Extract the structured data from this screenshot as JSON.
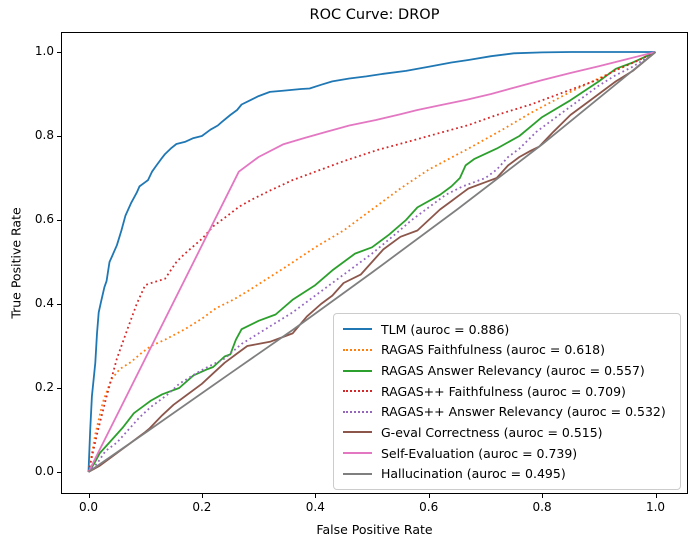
{
  "figure": {
    "title": "ROC Curve: DROP",
    "xlabel": "False Positive Rate",
    "ylabel": "True Positive Rate"
  },
  "chart_data": {
    "type": "line",
    "title": "ROC Curve: DROP",
    "xlabel": "False Positive Rate",
    "ylabel": "True Positive Rate",
    "xlim": [
      0.0,
      1.0
    ],
    "ylim": [
      0.0,
      1.0
    ],
    "axis_margin": 0.05,
    "grid": false,
    "legend_position": "lower right",
    "xtick_labels": [
      "0.0",
      "0.2",
      "0.4",
      "0.6",
      "0.8",
      "1.0"
    ],
    "ytick_labels": [
      "0.0",
      "0.2",
      "0.4",
      "0.6",
      "0.8",
      "1.0"
    ],
    "xticks": [
      0.0,
      0.2,
      0.4,
      0.6,
      0.8,
      1.0
    ],
    "yticks": [
      0.0,
      0.2,
      0.4,
      0.6,
      0.8,
      1.0
    ],
    "series": [
      {
        "name": "TLM",
        "auroc": 0.886,
        "label": "TLM (auroc = 0.886)",
        "color": "#1f77b4",
        "style": "solid",
        "points": [
          [
            0,
            0
          ],
          [
            0.003,
            0.1
          ],
          [
            0.006,
            0.18
          ],
          [
            0.009,
            0.22
          ],
          [
            0.012,
            0.26
          ],
          [
            0.015,
            0.33
          ],
          [
            0.018,
            0.38
          ],
          [
            0.022,
            0.405
          ],
          [
            0.028,
            0.44
          ],
          [
            0.032,
            0.455
          ],
          [
            0.037,
            0.5
          ],
          [
            0.042,
            0.515
          ],
          [
            0.05,
            0.54
          ],
          [
            0.058,
            0.575
          ],
          [
            0.065,
            0.61
          ],
          [
            0.075,
            0.64
          ],
          [
            0.085,
            0.665
          ],
          [
            0.09,
            0.68
          ],
          [
            0.1,
            0.69
          ],
          [
            0.105,
            0.695
          ],
          [
            0.112,
            0.715
          ],
          [
            0.12,
            0.73
          ],
          [
            0.128,
            0.745
          ],
          [
            0.135,
            0.757
          ],
          [
            0.145,
            0.77
          ],
          [
            0.155,
            0.781
          ],
          [
            0.17,
            0.786
          ],
          [
            0.185,
            0.795
          ],
          [
            0.2,
            0.8
          ],
          [
            0.215,
            0.815
          ],
          [
            0.228,
            0.825
          ],
          [
            0.235,
            0.833
          ],
          [
            0.25,
            0.85
          ],
          [
            0.262,
            0.862
          ],
          [
            0.27,
            0.875
          ],
          [
            0.285,
            0.885
          ],
          [
            0.3,
            0.895
          ],
          [
            0.32,
            0.905
          ],
          [
            0.345,
            0.908
          ],
          [
            0.375,
            0.912
          ],
          [
            0.39,
            0.913
          ],
          [
            0.41,
            0.922
          ],
          [
            0.43,
            0.93
          ],
          [
            0.46,
            0.937
          ],
          [
            0.49,
            0.942
          ],
          [
            0.52,
            0.948
          ],
          [
            0.56,
            0.955
          ],
          [
            0.6,
            0.965
          ],
          [
            0.64,
            0.975
          ],
          [
            0.67,
            0.981
          ],
          [
            0.71,
            0.99
          ],
          [
            0.75,
            0.997
          ],
          [
            0.8,
            0.999
          ],
          [
            0.85,
            1.0
          ],
          [
            1,
            1
          ]
        ]
      },
      {
        "name": "RAGAS Faithfulness",
        "auroc": 0.618,
        "label": "RAGAS Faithfulness (auroc = 0.618)",
        "color": "#ff7f0e",
        "style": "dotted",
        "points": [
          [
            0,
            0
          ],
          [
            0.012,
            0.09
          ],
          [
            0.025,
            0.165
          ],
          [
            0.04,
            0.22
          ],
          [
            0.055,
            0.245
          ],
          [
            0.075,
            0.262
          ],
          [
            0.095,
            0.285
          ],
          [
            0.11,
            0.3
          ],
          [
            0.135,
            0.315
          ],
          [
            0.17,
            0.34
          ],
          [
            0.2,
            0.365
          ],
          [
            0.225,
            0.39
          ],
          [
            0.255,
            0.41
          ],
          [
            0.28,
            0.43
          ],
          [
            0.315,
            0.46
          ],
          [
            0.35,
            0.49
          ],
          [
            0.4,
            0.535
          ],
          [
            0.45,
            0.575
          ],
          [
            0.5,
            0.625
          ],
          [
            0.55,
            0.675
          ],
          [
            0.6,
            0.72
          ],
          [
            0.67,
            0.77
          ],
          [
            0.73,
            0.815
          ],
          [
            0.78,
            0.855
          ],
          [
            0.85,
            0.905
          ],
          [
            0.92,
            0.95
          ],
          [
            1,
            1
          ]
        ]
      },
      {
        "name": "RAGAS Answer Relevancy",
        "auroc": 0.557,
        "label": "RAGAS Answer Relevancy (auroc = 0.557)",
        "color": "#2ca02c",
        "style": "solid",
        "points": [
          [
            0,
            0
          ],
          [
            0.01,
            0.02
          ],
          [
            0.02,
            0.045
          ],
          [
            0.04,
            0.075
          ],
          [
            0.06,
            0.105
          ],
          [
            0.08,
            0.14
          ],
          [
            0.1,
            0.16
          ],
          [
            0.11,
            0.17
          ],
          [
            0.13,
            0.185
          ],
          [
            0.16,
            0.2
          ],
          [
            0.185,
            0.23
          ],
          [
            0.21,
            0.245
          ],
          [
            0.22,
            0.25
          ],
          [
            0.24,
            0.275
          ],
          [
            0.25,
            0.28
          ],
          [
            0.26,
            0.315
          ],
          [
            0.27,
            0.34
          ],
          [
            0.3,
            0.36
          ],
          [
            0.33,
            0.375
          ],
          [
            0.36,
            0.41
          ],
          [
            0.4,
            0.445
          ],
          [
            0.43,
            0.48
          ],
          [
            0.47,
            0.52
          ],
          [
            0.5,
            0.535
          ],
          [
            0.53,
            0.565
          ],
          [
            0.56,
            0.6
          ],
          [
            0.58,
            0.63
          ],
          [
            0.62,
            0.66
          ],
          [
            0.64,
            0.68
          ],
          [
            0.655,
            0.7
          ],
          [
            0.665,
            0.73
          ],
          [
            0.68,
            0.745
          ],
          [
            0.72,
            0.77
          ],
          [
            0.76,
            0.8
          ],
          [
            0.8,
            0.845
          ],
          [
            0.85,
            0.885
          ],
          [
            0.9,
            0.93
          ],
          [
            0.93,
            0.96
          ],
          [
            0.96,
            0.975
          ],
          [
            1,
            1
          ]
        ]
      },
      {
        "name": "RAGAS++ Faithfulness",
        "auroc": 0.709,
        "label": "RAGAS++ Faithfulness (auroc = 0.709)",
        "color": "#d62728",
        "style": "dotted",
        "points": [
          [
            0,
            0
          ],
          [
            0.015,
            0.09
          ],
          [
            0.03,
            0.17
          ],
          [
            0.05,
            0.27
          ],
          [
            0.07,
            0.345
          ],
          [
            0.085,
            0.4
          ],
          [
            0.1,
            0.445
          ],
          [
            0.115,
            0.452
          ],
          [
            0.135,
            0.46
          ],
          [
            0.155,
            0.5
          ],
          [
            0.17,
            0.52
          ],
          [
            0.2,
            0.555
          ],
          [
            0.22,
            0.585
          ],
          [
            0.245,
            0.61
          ],
          [
            0.266,
            0.632
          ],
          [
            0.29,
            0.65
          ],
          [
            0.32,
            0.67
          ],
          [
            0.36,
            0.695
          ],
          [
            0.4,
            0.715
          ],
          [
            0.45,
            0.74
          ],
          [
            0.51,
            0.767
          ],
          [
            0.56,
            0.785
          ],
          [
            0.6,
            0.8
          ],
          [
            0.64,
            0.815
          ],
          [
            0.67,
            0.826
          ],
          [
            0.72,
            0.85
          ],
          [
            0.78,
            0.875
          ],
          [
            0.85,
            0.91
          ],
          [
            0.9,
            0.935
          ],
          [
            0.93,
            0.957
          ],
          [
            0.97,
            0.98
          ],
          [
            1,
            1
          ]
        ]
      },
      {
        "name": "RAGAS++ Answer Relevancy",
        "auroc": 0.532,
        "label": "RAGAS++ Answer Relevancy (auroc = 0.532)",
        "color": "#9467bd",
        "style": "dotted",
        "points": [
          [
            0,
            0
          ],
          [
            0.015,
            0.02
          ],
          [
            0.03,
            0.05
          ],
          [
            0.05,
            0.07
          ],
          [
            0.07,
            0.1
          ],
          [
            0.09,
            0.13
          ],
          [
            0.11,
            0.155
          ],
          [
            0.14,
            0.185
          ],
          [
            0.16,
            0.21
          ],
          [
            0.19,
            0.235
          ],
          [
            0.21,
            0.25
          ],
          [
            0.24,
            0.27
          ],
          [
            0.27,
            0.305
          ],
          [
            0.3,
            0.33
          ],
          [
            0.33,
            0.355
          ],
          [
            0.36,
            0.38
          ],
          [
            0.4,
            0.42
          ],
          [
            0.43,
            0.45
          ],
          [
            0.47,
            0.49
          ],
          [
            0.5,
            0.52
          ],
          [
            0.54,
            0.565
          ],
          [
            0.57,
            0.6
          ],
          [
            0.6,
            0.63
          ],
          [
            0.63,
            0.66
          ],
          [
            0.66,
            0.68
          ],
          [
            0.68,
            0.69
          ],
          [
            0.7,
            0.7
          ],
          [
            0.72,
            0.72
          ],
          [
            0.74,
            0.75
          ],
          [
            0.76,
            0.77
          ],
          [
            0.79,
            0.81
          ],
          [
            0.82,
            0.84
          ],
          [
            0.87,
            0.89
          ],
          [
            0.9,
            0.92
          ],
          [
            0.93,
            0.945
          ],
          [
            0.96,
            0.965
          ],
          [
            1,
            1
          ]
        ]
      },
      {
        "name": "G-eval Correctness",
        "auroc": 0.515,
        "label": "G-eval Correctness (auroc = 0.515)",
        "color": "#8c564b",
        "style": "solid",
        "points": [
          [
            0,
            0
          ],
          [
            0.02,
            0.015
          ],
          [
            0.04,
            0.035
          ],
          [
            0.06,
            0.055
          ],
          [
            0.08,
            0.075
          ],
          [
            0.1,
            0.095
          ],
          [
            0.108,
            0.104
          ],
          [
            0.13,
            0.135
          ],
          [
            0.15,
            0.16
          ],
          [
            0.17,
            0.18
          ],
          [
            0.2,
            0.21
          ],
          [
            0.22,
            0.235
          ],
          [
            0.24,
            0.26
          ],
          [
            0.26,
            0.28
          ],
          [
            0.28,
            0.3
          ],
          [
            0.3,
            0.305
          ],
          [
            0.32,
            0.31
          ],
          [
            0.34,
            0.32
          ],
          [
            0.36,
            0.33
          ],
          [
            0.385,
            0.37
          ],
          [
            0.41,
            0.4
          ],
          [
            0.43,
            0.42
          ],
          [
            0.45,
            0.45
          ],
          [
            0.48,
            0.47
          ],
          [
            0.5,
            0.5
          ],
          [
            0.52,
            0.53
          ],
          [
            0.55,
            0.56
          ],
          [
            0.58,
            0.575
          ],
          [
            0.6,
            0.6
          ],
          [
            0.62,
            0.625
          ],
          [
            0.64,
            0.645
          ],
          [
            0.66,
            0.665
          ],
          [
            0.67,
            0.675
          ],
          [
            0.7,
            0.69
          ],
          [
            0.72,
            0.7
          ],
          [
            0.74,
            0.73
          ],
          [
            0.76,
            0.75
          ],
          [
            0.78,
            0.765
          ],
          [
            0.795,
            0.775
          ],
          [
            0.82,
            0.81
          ],
          [
            0.85,
            0.85
          ],
          [
            0.88,
            0.88
          ],
          [
            0.9,
            0.9
          ],
          [
            0.93,
            0.93
          ],
          [
            0.96,
            0.955
          ],
          [
            1,
            1
          ]
        ]
      },
      {
        "name": "Self-Evaluation",
        "auroc": 0.739,
        "label": "Self-Evaluation (auroc = 0.739)",
        "color": "#e377c2",
        "style": "solid",
        "points": [
          [
            0,
            0
          ],
          [
            0.265,
            0.715
          ],
          [
            0.3,
            0.75
          ],
          [
            0.343,
            0.78
          ],
          [
            0.38,
            0.795
          ],
          [
            0.42,
            0.81
          ],
          [
            0.46,
            0.825
          ],
          [
            0.507,
            0.838
          ],
          [
            0.55,
            0.852
          ],
          [
            0.58,
            0.862
          ],
          [
            0.62,
            0.873
          ],
          [
            0.666,
            0.886
          ],
          [
            0.71,
            0.9
          ],
          [
            0.75,
            0.915
          ],
          [
            0.8,
            0.933
          ],
          [
            0.85,
            0.95
          ],
          [
            0.9,
            0.966
          ],
          [
            0.95,
            0.983
          ],
          [
            1,
            1
          ]
        ]
      },
      {
        "name": "Hallucination",
        "auroc": 0.495,
        "label": "Hallucination (auroc = 0.495)",
        "color": "#7f7f7f",
        "style": "solid",
        "points": [
          [
            0,
            0
          ],
          [
            0.1,
            0.093
          ],
          [
            0.25,
            0.235
          ],
          [
            0.36,
            0.338
          ],
          [
            0.5,
            0.475
          ],
          [
            0.65,
            0.625
          ],
          [
            0.8,
            0.78
          ],
          [
            0.9,
            0.89
          ],
          [
            1,
            1
          ]
        ]
      }
    ]
  }
}
